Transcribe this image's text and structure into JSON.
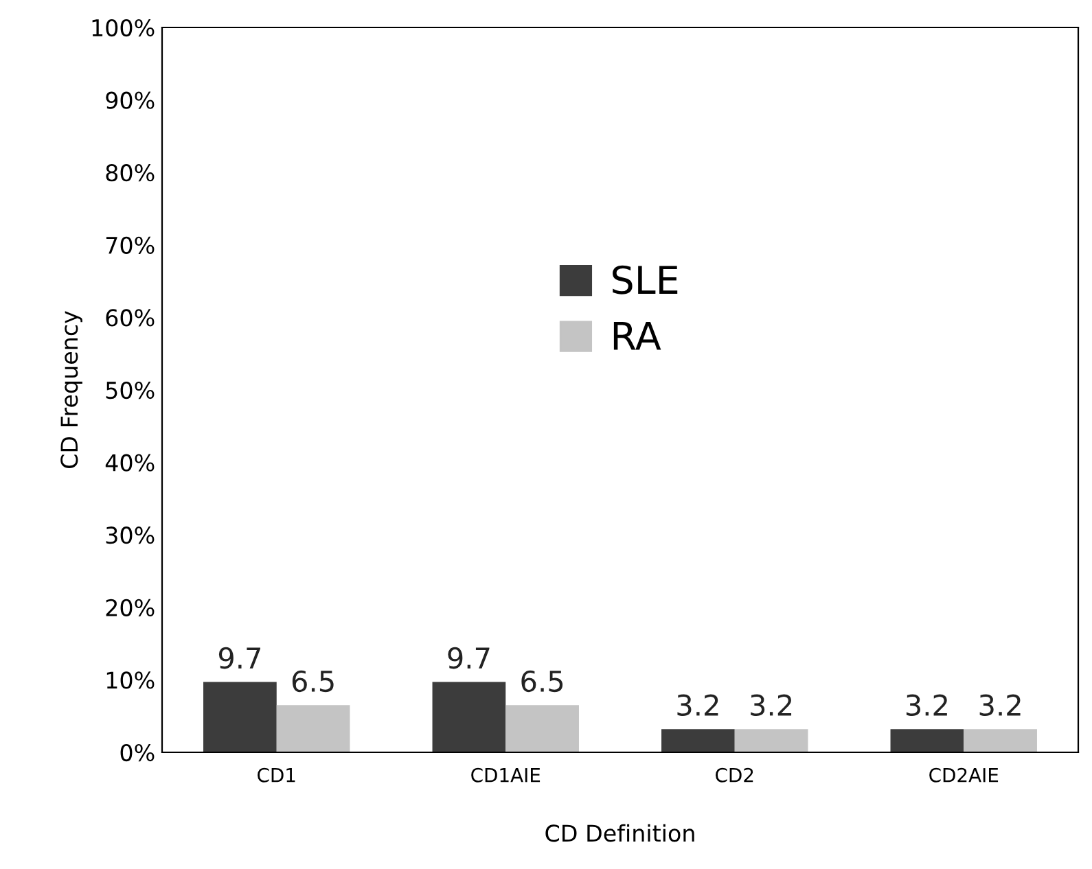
{
  "chart_data": {
    "type": "bar",
    "xlabel": "CD Definition",
    "ylabel": "CD Frequency",
    "categories": [
      "CD1",
      "CD1AIE",
      "CD2",
      "CD2AIE"
    ],
    "series": [
      {
        "name": "SLE",
        "color": "#3c3c3c",
        "values": [
          9.7,
          9.7,
          3.2,
          3.2
        ]
      },
      {
        "name": "RA",
        "color": "#c4c4c4",
        "values": [
          6.5,
          6.5,
          3.2,
          3.2
        ]
      }
    ],
    "ylim": [
      0,
      100
    ],
    "yticks": [
      {
        "value": 0,
        "label": "0%"
      },
      {
        "value": 10,
        "label": "10%"
      },
      {
        "value": 20,
        "label": "20%"
      },
      {
        "value": 30,
        "label": "30%"
      },
      {
        "value": 40,
        "label": "40%"
      },
      {
        "value": 50,
        "label": "50%"
      },
      {
        "value": 60,
        "label": "60%"
      },
      {
        "value": 70,
        "label": "70%"
      },
      {
        "value": 80,
        "label": "80%"
      },
      {
        "value": 90,
        "label": "90%"
      },
      {
        "value": 100,
        "label": "100%"
      }
    ],
    "data_labels": true,
    "legend": "top",
    "grid": false
  }
}
